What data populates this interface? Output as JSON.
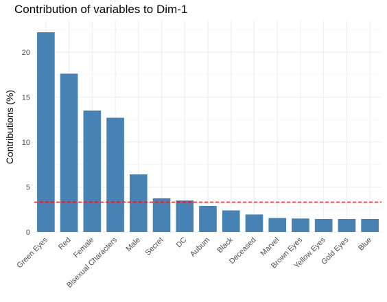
{
  "chart_data": {
    "type": "bar",
    "title": "Contribution of variables to Dim-1",
    "xlabel": "",
    "ylabel": "Contributions (%)",
    "categories": [
      "Green Eyes",
      "Red",
      "Female",
      "Bisexual Characters",
      "Male",
      "Secret",
      "DC",
      "Aubum",
      "Black",
      "Deceased",
      "Marvel",
      "Brown Eyes",
      "Yellow Eyes",
      "Gold Eyes",
      "Blue"
    ],
    "values": [
      22.2,
      17.6,
      13.5,
      12.7,
      6.4,
      3.75,
      3.5,
      2.9,
      2.4,
      1.95,
      1.55,
      1.5,
      1.45,
      1.45,
      1.45
    ],
    "ylim": [
      0,
      23.5
    ],
    "yticks": [
      "0",
      "5",
      "10",
      "15",
      "20"
    ],
    "reference_line": 3.33,
    "bar_color": "#4682b4",
    "reference_color": "#ff0000",
    "grid": true
  }
}
